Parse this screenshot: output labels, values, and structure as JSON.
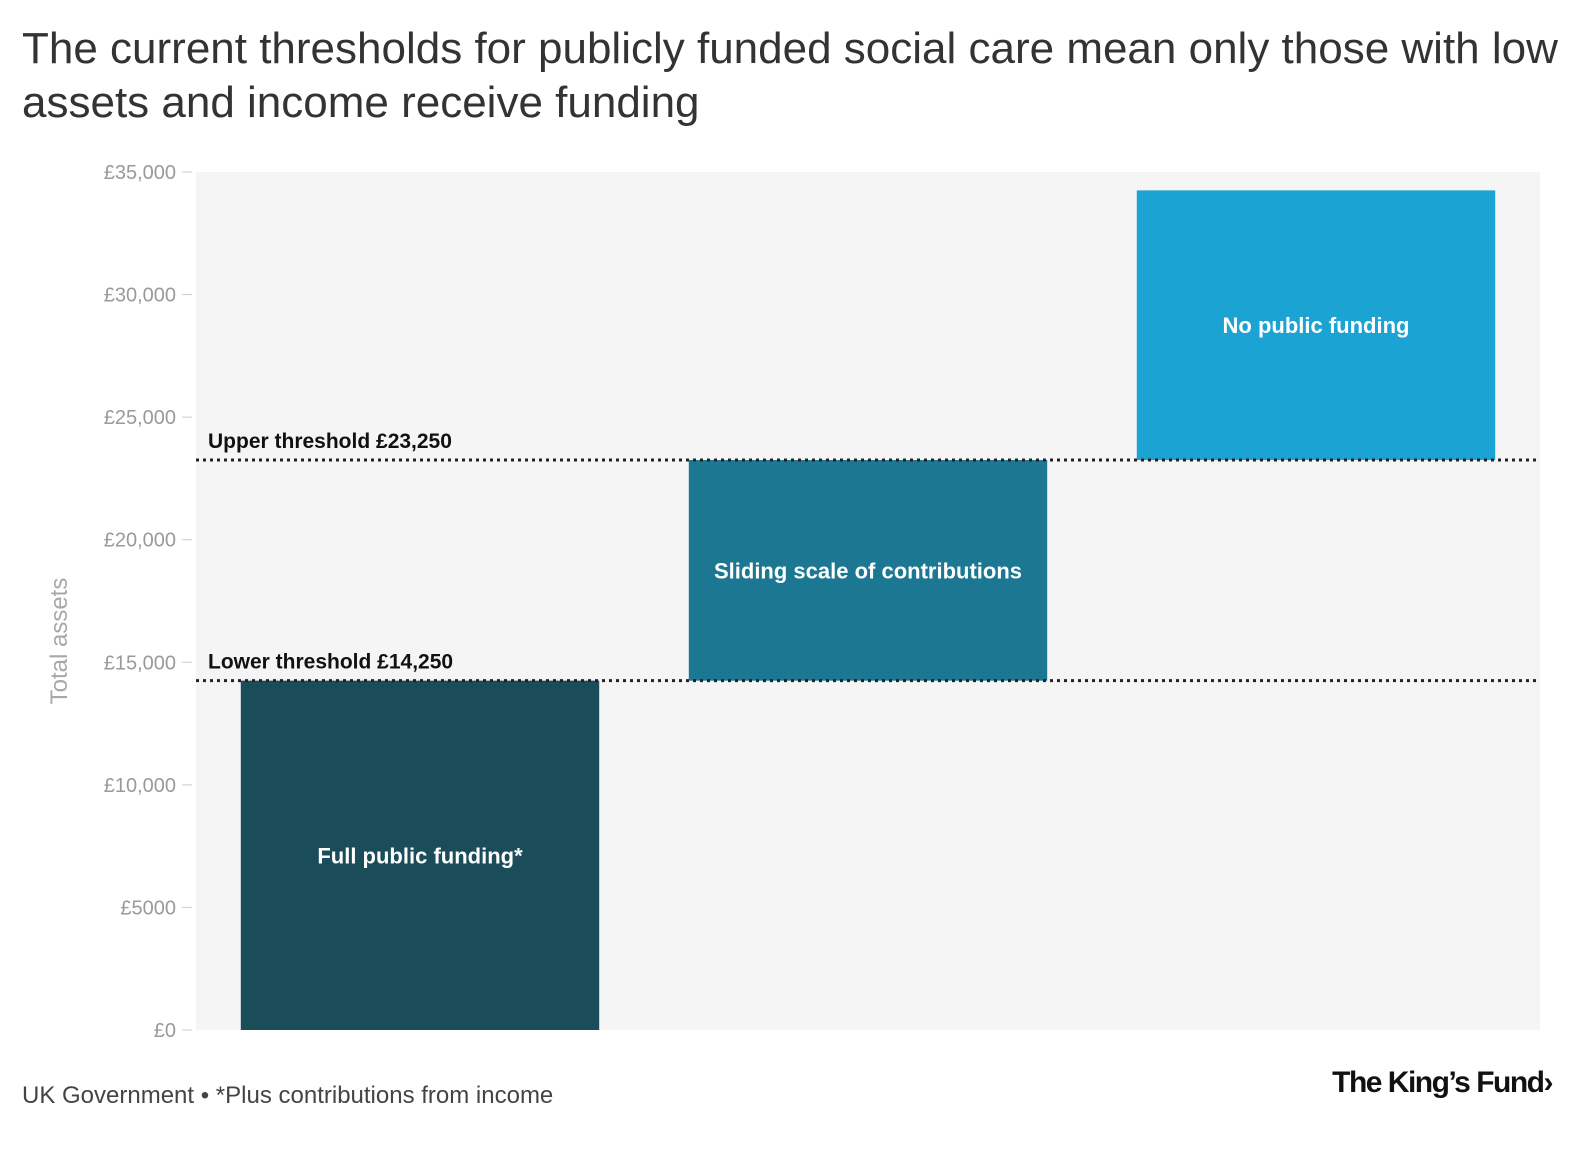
{
  "title": "The current thresholds for publicly funded social care mean only those with low assets and income receive funding",
  "footer": {
    "source": "UK Government • *Plus contributions from income"
  },
  "logo": {
    "text": "The King’s Fund›"
  },
  "colors": {
    "plot_background": "#f5f5f5",
    "full_funding": "#1b4c59",
    "sliding_scale": "#1c7793",
    "no_funding": "#1aa3d3",
    "threshold_line": "#222222"
  },
  "chart_data": {
    "type": "bar",
    "ylabel": "Total assets",
    "ylim": [
      0,
      35000
    ],
    "yticks": [
      0,
      5000,
      10000,
      15000,
      20000,
      25000,
      30000,
      35000
    ],
    "ytick_labels": [
      "£0",
      "£5000",
      "£10,000",
      "£15,000",
      "£20,000",
      "£25,000",
      "£30,000",
      "£35,000"
    ],
    "grid": false,
    "bars": [
      {
        "label": "Full public funding*",
        "y_start": 0,
        "y_end": 14250,
        "color": "#1b4c59"
      },
      {
        "label": "Sliding scale of contributions",
        "y_start": 14250,
        "y_end": 23250,
        "color": "#1c7793"
      },
      {
        "label": "No public funding",
        "y_start": 23250,
        "y_end": 34250,
        "color": "#1aa3d3"
      }
    ],
    "thresholds": [
      {
        "label": "Upper threshold £23,250",
        "value": 23250
      },
      {
        "label": "Lower threshold £14,250",
        "value": 14250
      }
    ]
  }
}
